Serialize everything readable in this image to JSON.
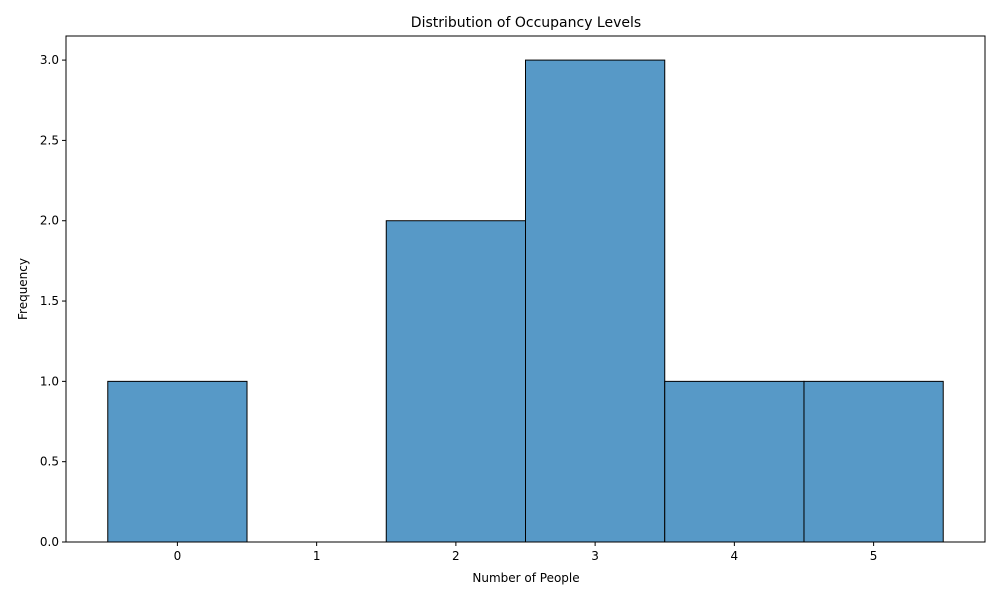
{
  "chart_data": {
    "type": "bar",
    "title": "Distribution of Occupancy Levels",
    "xlabel": "Number of People",
    "ylabel": "Frequency",
    "categories": [
      "0",
      "1",
      "2",
      "3",
      "4",
      "5"
    ],
    "values": [
      1,
      0,
      2,
      3,
      1,
      1
    ],
    "xlim": [
      -0.8,
      5.8
    ],
    "ylim": [
      0,
      3.15
    ],
    "yticks": [
      "0.0",
      "0.5",
      "1.0",
      "1.5",
      "2.0",
      "2.5",
      "3.0"
    ],
    "bar_color": "#5799c7",
    "edge_color": "#000000",
    "grid": false,
    "legend": "none"
  }
}
